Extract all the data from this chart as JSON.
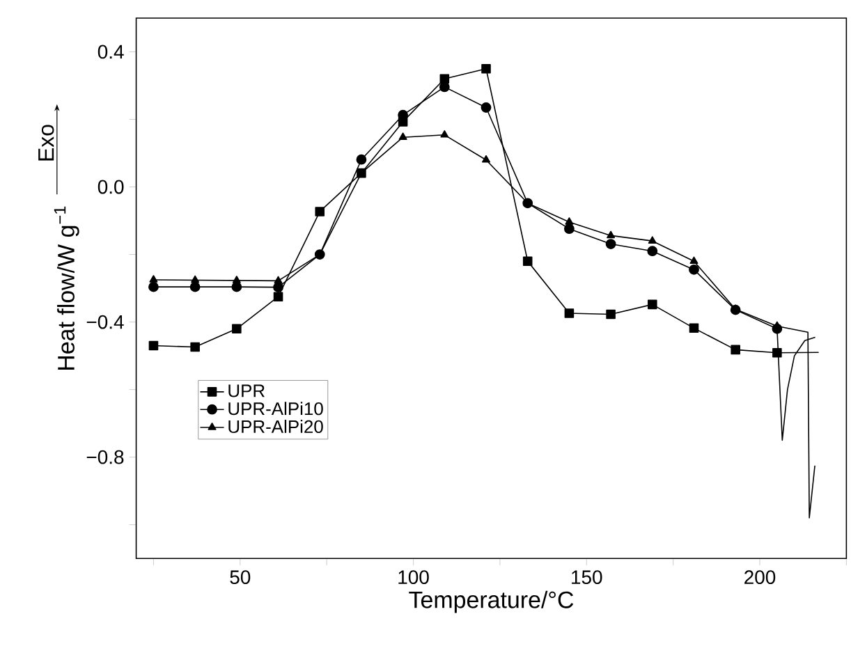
{
  "chart_data": {
    "type": "line",
    "xlabel": "Temperature/°C",
    "ylabel": "Heat flow/W g$^{−1}$",
    "annotations": [
      "Exo"
    ],
    "xlim": [
      20,
      225
    ],
    "ylim": [
      -1.1,
      0.5
    ],
    "xticks": [
      {
        "value": 25,
        "label": null
      },
      50,
      {
        "value": 75,
        "label": null
      },
      100,
      {
        "value": 125,
        "label": null
      },
      150,
      {
        "value": 175,
        "label": null
      },
      200,
      {
        "value": 225,
        "label": null
      }
    ],
    "yticks": [
      {
        "value": -1.0,
        "label": null
      },
      {
        "value": -0.8,
        "label": "−0.8"
      },
      {
        "value": -0.6,
        "label": null
      },
      {
        "value": -0.4,
        "label": "−0.4"
      },
      {
        "value": -0.2,
        "label": null
      },
      {
        "value": 0.0,
        "label": "0.0"
      },
      {
        "value": 0.2,
        "label": null
      },
      {
        "value": 0.4,
        "label": "0.4"
      }
    ],
    "grid": false,
    "legend": "left",
    "line_style": "solid",
    "series": [
      {
        "name": "UPR",
        "color": "#000000",
        "marker": "square",
        "x": [
          25,
          37,
          49,
          61,
          73,
          85,
          97,
          109,
          121,
          133,
          145,
          157,
          169,
          181,
          193,
          205
        ],
        "values": [
          -0.47,
          -0.474,
          -0.42,
          -0.325,
          -0.073,
          0.041,
          0.193,
          0.32,
          0.35,
          -0.22,
          -0.374,
          -0.377,
          -0.348,
          -0.418,
          -0.482,
          -0.491
        ]
      },
      {
        "name": "UPR-AlPi10",
        "color": "#000000",
        "marker": "circle",
        "x": [
          25,
          37,
          49,
          61,
          73,
          85,
          97,
          109,
          121,
          133,
          145,
          157,
          169,
          181,
          193,
          205
        ],
        "values": [
          -0.296,
          -0.296,
          -0.296,
          -0.297,
          -0.2,
          0.081,
          0.213,
          0.296,
          0.235,
          -0.048,
          -0.124,
          -0.169,
          -0.19,
          -0.245,
          -0.364,
          -0.42
        ]
      },
      {
        "name": "UPR-AlPi20",
        "color": "#000000",
        "marker": "triangle",
        "x": [
          25,
          37,
          49,
          61,
          73,
          85,
          97,
          109,
          121,
          133,
          145,
          157,
          169,
          181,
          193,
          205
        ],
        "values": [
          -0.275,
          -0.276,
          -0.277,
          -0.278,
          -0.2,
          0.041,
          0.147,
          0.154,
          0.08,
          -0.048,
          -0.104,
          -0.144,
          -0.16,
          -0.22,
          -0.362,
          -0.412
        ]
      },
      {
        "color": "#000000",
        "marker": "none",
        "x": [
          205,
          217
        ],
        "values": [
          -0.491,
          -0.49
        ]
      },
      {
        "color": "#000000",
        "marker": "none",
        "x": [
          205,
          206.5,
          208,
          210,
          213,
          216
        ],
        "values": [
          -0.42,
          -0.75,
          -0.6,
          -0.5,
          -0.455,
          -0.445
        ]
      },
      {
        "color": "#000000",
        "marker": "none",
        "x": [
          205,
          213.9,
          214.3,
          215.9
        ],
        "values": [
          -0.412,
          -0.43,
          -0.98,
          -0.825
        ]
      }
    ]
  }
}
